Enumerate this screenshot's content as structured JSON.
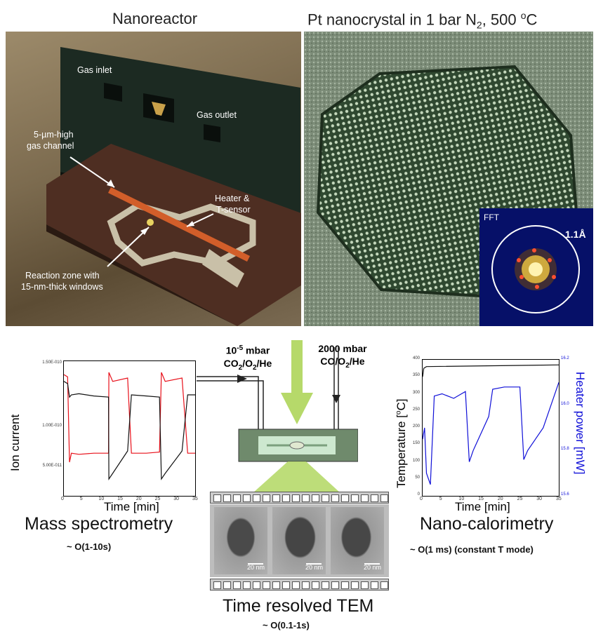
{
  "header": {
    "left_title": "Nanoreactor",
    "right_title_main": "Pt nanocrystal in 1 bar N",
    "right_title_sub": "2",
    "right_title_tail": ", 500 ",
    "right_title_deg": "o",
    "right_title_unit": "C"
  },
  "photo_labels": {
    "gas_inlet": "Gas inlet",
    "gas_outlet": "Gas outlet",
    "channel_1": "5-µm-high",
    "channel_2": "gas channel",
    "heater_1": "Heater &",
    "heater_2": "T-sensor",
    "zone_1": "Reaction zone with",
    "zone_2": "15-nm-thick windows"
  },
  "fft": {
    "label": "FFT",
    "ring_label": "1.1Å"
  },
  "gas": {
    "out_pressure_base": "10",
    "out_pressure_exp": "-5",
    "out_pressure_unit": " mbar",
    "out_species_a": "CO",
    "out_species_sub1": "2",
    "out_species_b": "/O",
    "out_species_sub2": "2",
    "out_species_c": "/He",
    "in_pressure": "2000 mbar",
    "in_species_a": "CO/O",
    "in_species_sub": "2",
    "in_species_b": "/He"
  },
  "mass_spec": {
    "caption": "Mass spectrometry",
    "resolution": "~ O(1-10s)",
    "ylabel": "Ion current",
    "xlabel": "Time [min]"
  },
  "calorimetry": {
    "caption": "Nano-calorimetry",
    "resolution": "~ O(1 ms) (constant T mode)",
    "ylabel_left_a": "Temperature [",
    "ylabel_left_deg": "o",
    "ylabel_left_b": "C]",
    "ylabel_right": "Heater power [mW]",
    "xlabel": "Time [min]"
  },
  "tem": {
    "caption": "Time resolved TEM",
    "resolution": "~ O(0.1-1s)",
    "scale_labels": [
      "20 nm",
      "20 nm",
      "20 nm"
    ]
  },
  "colors": {
    "red": "#e8101a",
    "black": "#111111",
    "blue": "#1010d8",
    "green": "#b6d96a"
  },
  "chart_data": [
    {
      "type": "line",
      "title": "",
      "xlabel": "Time [min]",
      "ylabel": "Ion current",
      "xlim": [
        0,
        35
      ],
      "ylim": [
        4e-11,
        1.6e-10
      ],
      "xticks": [
        0,
        5,
        10,
        15,
        20,
        25,
        30,
        35
      ],
      "yticks": [
        "5.00E-011",
        "1.00E-010",
        "1.50E-010"
      ],
      "series": [
        {
          "color": "#e8101a",
          "x": [
            0,
            1,
            1.5,
            2,
            4,
            8,
            11.9,
            12,
            13,
            17,
            18,
            22,
            25.5,
            26,
            27,
            31.5,
            33,
            35
          ],
          "y": [
            1.48e-10,
            1.46e-10,
            7e-11,
            7.8e-11,
            7.7e-11,
            7.8e-11,
            7.8e-11,
            1.5e-10,
            1.42e-10,
            1.45e-10,
            7.8e-11,
            7.8e-11,
            7.9e-11,
            1.5e-10,
            1.42e-10,
            1.45e-10,
            7.8e-11,
            7.8e-11
          ]
        },
        {
          "color": "#111111",
          "x": [
            0,
            1,
            1.5,
            2,
            4,
            8,
            11.9,
            12,
            13,
            17,
            18,
            22,
            25.5,
            26,
            27,
            31.5,
            33,
            35
          ],
          "y": [
            1.42e-10,
            1.4e-10,
            1.28e-10,
            1.3e-10,
            1.31e-10,
            1.29e-10,
            1.28e-10,
            5.5e-11,
            6e-11,
            8e-11,
            1.3e-10,
            1.29e-10,
            1.28e-10,
            5.5e-11,
            6e-11,
            8e-11,
            1.3e-10,
            1.3e-10
          ]
        }
      ]
    },
    {
      "type": "line",
      "title": "",
      "xlabel": "Time [min]",
      "ylabel": "Temperature [oC]",
      "ylabel_right": "Heater power [mW]",
      "xlim": [
        0,
        35
      ],
      "ylim": [
        0,
        400
      ],
      "ylim_right": [
        15.6,
        16.2
      ],
      "xticks": [
        0,
        5,
        10,
        15,
        20,
        25,
        30,
        35
      ],
      "yticks": [
        0,
        50,
        100,
        150,
        200,
        250,
        300,
        350,
        400
      ],
      "yticks_right": [
        15.6,
        15.8,
        16.0,
        16.2
      ],
      "series": [
        {
          "color": "#111111",
          "axis": "left",
          "x": [
            0,
            0.3,
            1,
            35
          ],
          "y": [
            350,
            375,
            380,
            385
          ]
        },
        {
          "color": "#1010d8",
          "axis": "right",
          "x": [
            0,
            0.5,
            1,
            2,
            3,
            5,
            8,
            10,
            11,
            12,
            13,
            17,
            18,
            21,
            25,
            26,
            27,
            31,
            35
          ],
          "y": [
            15.85,
            15.9,
            15.7,
            15.65,
            16.04,
            16.05,
            16.03,
            16.05,
            16.06,
            15.75,
            15.8,
            15.95,
            16.07,
            16.08,
            16.08,
            15.76,
            15.8,
            15.9,
            16.1
          ]
        }
      ]
    }
  ]
}
